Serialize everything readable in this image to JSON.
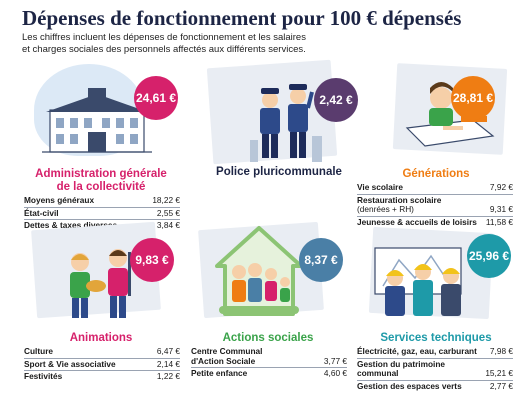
{
  "header": {
    "title": "Dépenses de fonctionnement pour 100 € dépensés",
    "subtitle_line1": "Les chiffres incluent les dépenses de fonctionnement et les salaires",
    "subtitle_line2": "et charges sociales des personnels affectés aux différents services."
  },
  "cards": [
    {
      "key": "administration",
      "amount": "24,61 €",
      "heading_line1": "Administration générale",
      "heading_line2": "de la collectivité",
      "heading_color": "#d6216b",
      "badge_color": "#d6216b",
      "icon": "town-hall-icon",
      "items": [
        {
          "label": "Moyens généraux",
          "value": "18,22 €"
        },
        {
          "label": "État-civil",
          "value": "2,55 €"
        },
        {
          "label": "Dettes & taxes diverses",
          "value": "3,84 €"
        }
      ]
    },
    {
      "key": "police",
      "amount": "2,42 €",
      "heading_line1": "Police pluricommunale",
      "heading_line2": "",
      "heading_color": "#1d2545",
      "badge_color": "#5a3c6e",
      "icon": "police-officers-icon",
      "items": []
    },
    {
      "key": "generations",
      "amount": "28,81 €",
      "heading_line1": "Générations",
      "heading_line2": "",
      "heading_color": "#ef7d13",
      "badge_color": "#ef7d13",
      "icon": "student-desk-icon",
      "items": [
        {
          "label": "Vie scolaire",
          "label_extra": "",
          "value": "7,92 €"
        },
        {
          "label": "Restauration scolaire",
          "label_extra": "(denrées + RH)",
          "value": "9,31 €"
        },
        {
          "label": "Jeunesse & accueils de loisirs",
          "label_extra": "",
          "value": "11,58 €"
        }
      ]
    },
    {
      "key": "animations",
      "amount": "9,83 €",
      "heading_line1": "Animations",
      "heading_line2": "",
      "heading_color": "#d6216b",
      "badge_color": "#d6216b",
      "icon": "musicians-icon",
      "items": [
        {
          "label": "Culture",
          "value": "6,47 €"
        },
        {
          "label": "Sport & Vie associative",
          "value": "2,14 €"
        },
        {
          "label": "Festivités",
          "value": "1,22 €"
        }
      ]
    },
    {
      "key": "actions_sociales",
      "amount": "8,37 €",
      "heading_line1": "Actions sociales",
      "heading_line2": "",
      "heading_color": "#3aa34a",
      "badge_color": "#4a7fa6",
      "icon": "family-house-icon",
      "items": [
        {
          "label": "Centre Communal",
          "label2": "d'Action Sociale",
          "value": "3,77 €"
        },
        {
          "label": "Petite enfance",
          "label2": "",
          "value": "4,60 €"
        }
      ]
    },
    {
      "key": "services_techniques",
      "amount": "25,96 €",
      "heading_line1": "Services techniques",
      "heading_line2": "",
      "heading_color": "#1e9aa8",
      "badge_color": "#1e9aa8",
      "icon": "construction-workers-icon",
      "items": [
        {
          "label": "Électricité, gaz, eau, carburant",
          "label2": "",
          "value": "7,98 €"
        },
        {
          "label": "Gestion du patrimoine",
          "label2": "communal",
          "value": "15,21 €"
        },
        {
          "label": "Gestion des espaces verts",
          "label2": "",
          "value": "2,77 €"
        }
      ]
    }
  ]
}
